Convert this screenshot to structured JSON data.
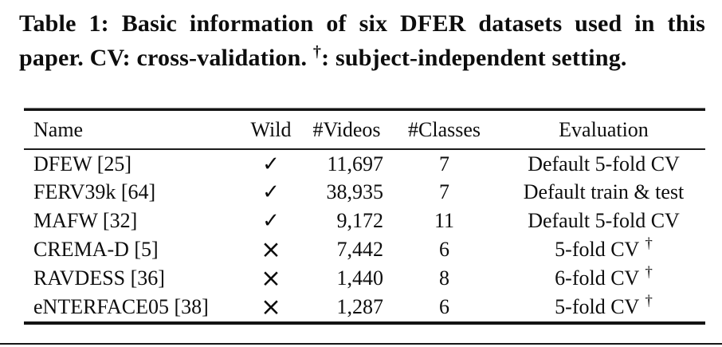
{
  "caption": {
    "line1": "Table 1: Basic information of six DFER datasets used in this",
    "line2_part1": "paper. CV: cross-validation. ",
    "line2_dagger": "†",
    "line2_part2": ": subject-independent setting."
  },
  "table": {
    "headers": {
      "name": "Name",
      "wild": "Wild",
      "videos": "#Videos",
      "classes": "#Classes",
      "evaluation": "Evaluation"
    },
    "rows": [
      {
        "name": "DFEW [25]",
        "wild": "✓",
        "videos": "11,697",
        "classes": "7",
        "evaluation": "Default 5-fold CV",
        "dagger": ""
      },
      {
        "name": "FERV39k [64]",
        "wild": "✓",
        "videos": "38,935",
        "classes": "7",
        "evaluation": "Default train & test",
        "dagger": ""
      },
      {
        "name": "MAFW [32]",
        "wild": "✓",
        "videos": "9,172",
        "classes": "11",
        "evaluation": "Default 5-fold CV",
        "dagger": ""
      },
      {
        "name": "CREMA-D [5]",
        "wild": "×",
        "videos": "7,442",
        "classes": "6",
        "evaluation": "5-fold CV",
        "dagger": "†"
      },
      {
        "name": "RAVDESS [36]",
        "wild": "×",
        "videos": "1,440",
        "classes": "8",
        "evaluation": "6-fold CV",
        "dagger": "†"
      },
      {
        "name": "eNTERFACE05 [38]",
        "wild": "×",
        "videos": "1,287",
        "classes": "6",
        "evaluation": "5-fold CV",
        "dagger": "†"
      }
    ]
  },
  "colors": {
    "text": "#0d0d0d",
    "background": "#ffffff",
    "rule": "#131313"
  }
}
